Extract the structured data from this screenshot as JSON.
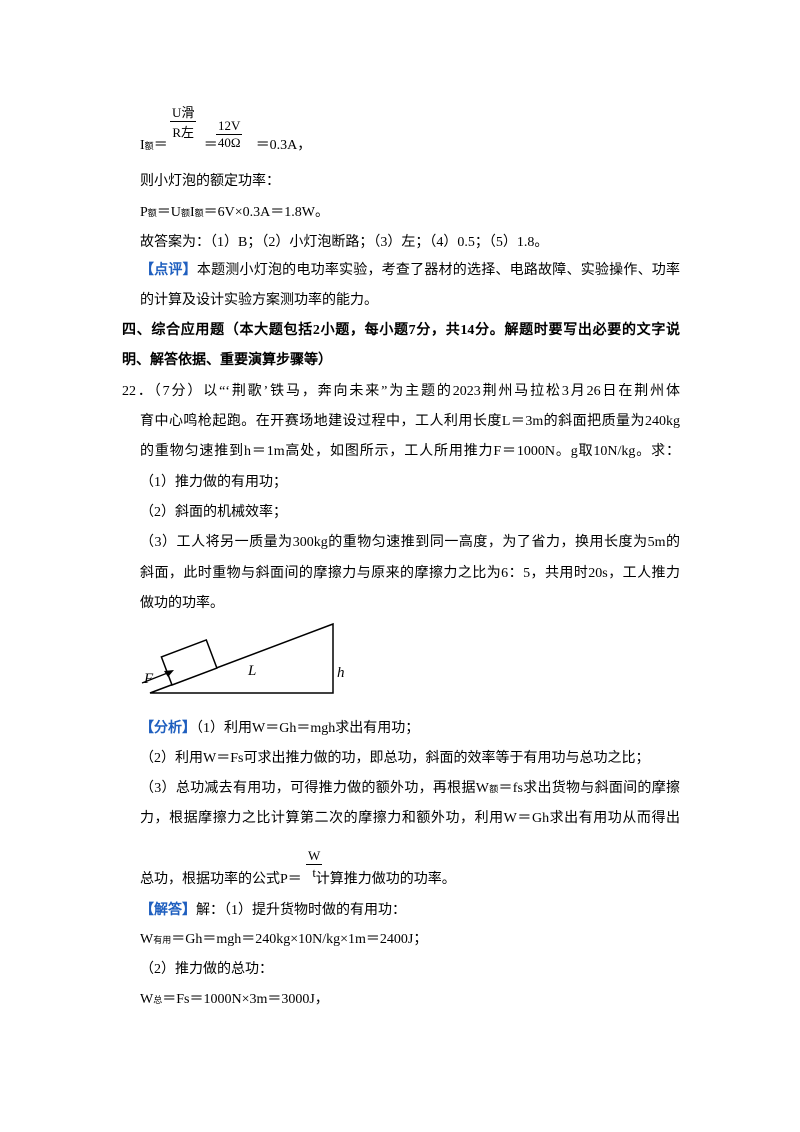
{
  "formula_current": {
    "symbol": "I",
    "sub": "额",
    "eq": "＝",
    "frac1_num": [
      "U",
      "滑"
    ],
    "frac1_den": [
      "R",
      "左"
    ],
    "eq2": "＝",
    "frac2_num": "12V",
    "frac2_den": "40Ω",
    "result": "＝0.3A，"
  },
  "lines": [
    [
      "则小灯泡的额定功率："
    ],
    [
      "P",
      "额",
      "＝U",
      "额",
      "I",
      "额",
      "＝6V×0.3A＝1.8W。"
    ],
    [
      "故答案为：（1）B；（2）小灯泡断路；（3）左；（4）0.5；（5）1.8。"
    ],
    [
      "【点评】",
      "本题测小灯泡的电功率实验，考查了器材的选择、电路故障、实验操作、功率"
    ],
    [
      "的计算及设计实验方案测功率的能力。"
    ],
    [
      "四、综合应用题（本大题包括2小题，每小题7分，共14分。解题时要写出必要的文字说"
    ],
    [
      "明、解答依据、重要演算步骤等）"
    ],
    [
      "22．（7分）以“‘荆歌’铁马，奔向未来”为主题的2023荆州马拉松3月26日在荆州体"
    ],
    [
      "育中心鸣枪起跑。在开赛场地建设过程中，工人利用长度L＝3m的斜面把质量为240kg"
    ],
    [
      "的重物匀速推到h＝1m高处，如图所示，工人所用推力F＝1000N。g取10N/kg。求："
    ],
    [
      "（1）推力做的有用功；"
    ],
    [
      "（2）斜面的机械效率；"
    ],
    [
      "（3）工人将另一质量为300kg的重物匀速推到同一高度，为了省力，换用长度为5m的"
    ],
    [
      "斜面，此时重物与斜面间的摩擦力与原来的摩擦力之比为6：5，共用时20s，工人推力"
    ],
    [
      "做功的功率。"
    ],
    [
      "【分析】",
      "（1）利用W＝Gh＝mgh求出有用功；"
    ],
    [
      "（2）利用W＝Fs可求出推力做的功，即总功，斜面的效率等于有用功与总功之比；"
    ],
    [
      "（3）总功减去有用功，可得推力做的额外功，再根据W",
      "额",
      "＝fs求出货物与斜面间的摩擦"
    ],
    [
      "力，根据摩擦力之比计算第二次的摩擦力和额外功，利用W＝Gh求出有用功从而得出"
    ]
  ],
  "power_formula": {
    "before": "总功，根据功率的公式P＝",
    "num": "W",
    "den": "t",
    "after": "计算推力做功的功率。"
  },
  "solution": [
    [
      "【解答】",
      "解：（1）提升货物时做的有用功："
    ],
    [
      "W",
      "有用",
      "＝Gh＝mgh＝240kg×10N/kg×1m＝2400J；"
    ],
    [
      "（2）推力做的总功："
    ],
    [
      "W",
      "总",
      "＝Fs＝1000N×3m＝3000J，"
    ]
  ],
  "figure": {
    "force": "F",
    "length": "L",
    "height": "h"
  }
}
